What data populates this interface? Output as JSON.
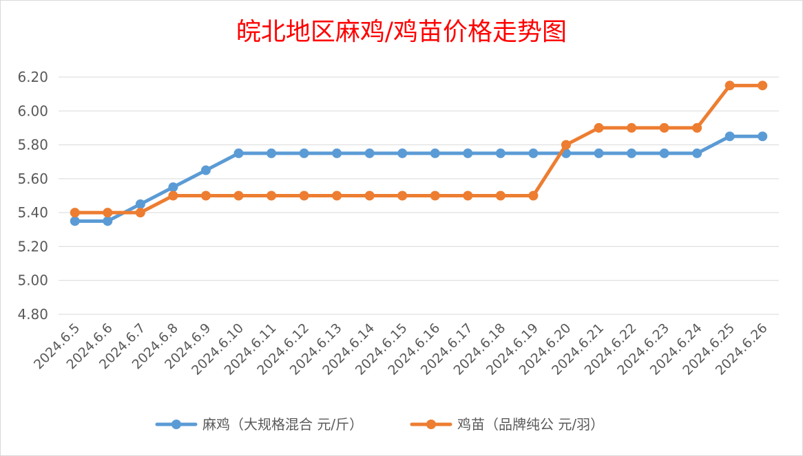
{
  "chart_data": {
    "type": "line",
    "title": "皖北地区麻鸡/鸡苗价格走势图",
    "xlabel": "",
    "ylabel": "",
    "categories": [
      "2024.6.5",
      "2024.6.6",
      "2024.6.7",
      "2024.6.8",
      "2024.6.9",
      "2024.6.10",
      "2024.6.11",
      "2024.6.12",
      "2024.6.13",
      "2024.6.14",
      "2024.6.15",
      "2024.6.16",
      "2024.6.17",
      "2024.6.18",
      "2024.6.19",
      "2024.6.20",
      "2024.6.21",
      "2024.6.22",
      "2024.6.23",
      "2024.6.24",
      "2024.6.25",
      "2024.6.26"
    ],
    "yticks": [
      "4.80",
      "5.00",
      "5.20",
      "5.40",
      "5.60",
      "5.80",
      "6.00",
      "6.20"
    ],
    "ylim": [
      4.8,
      6.2
    ],
    "grid": true,
    "legend_position": "bottom",
    "series": [
      {
        "name": "麻鸡（大规格混合 元/斤）",
        "color": "#5b9bd5",
        "values": [
          5.35,
          5.35,
          5.45,
          5.55,
          5.65,
          5.75,
          5.75,
          5.75,
          5.75,
          5.75,
          5.75,
          5.75,
          5.75,
          5.75,
          5.75,
          5.75,
          5.75,
          5.75,
          5.75,
          5.75,
          5.85,
          5.85
        ]
      },
      {
        "name": "鸡苗（品牌纯公 元/羽）",
        "color": "#ed7d31",
        "values": [
          5.4,
          5.4,
          5.4,
          5.5,
          5.5,
          5.5,
          5.5,
          5.5,
          5.5,
          5.5,
          5.5,
          5.5,
          5.5,
          5.5,
          5.5,
          5.8,
          5.9,
          5.9,
          5.9,
          5.9,
          6.15,
          6.15
        ]
      }
    ]
  }
}
